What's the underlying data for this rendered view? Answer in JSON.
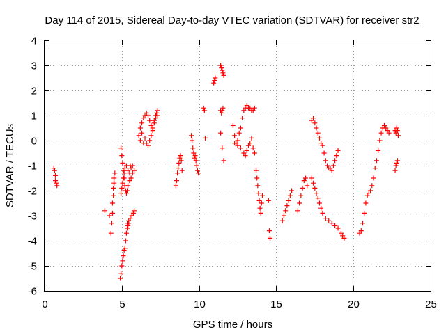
{
  "chart_data": {
    "type": "scatter",
    "title": "Day 114 of 2015, Sidereal Day-to-day VTEC variation (SDTVAR) for receiver str2",
    "xlabel": "GPS time / hours",
    "ylabel": "SDTVAR / TECUs",
    "xlim": [
      0,
      25
    ],
    "ylim": [
      -6,
      4
    ],
    "xticks": [
      "0",
      "5",
      "10",
      "15",
      "20",
      "25"
    ],
    "yticks": [
      "-6",
      "-5",
      "-4",
      "-3",
      "-2",
      "-1",
      "0",
      "1",
      "2",
      "3",
      "4"
    ],
    "grid": true,
    "marker": "+",
    "series_color": "#ff0000",
    "series": [
      {
        "name": "SDTVAR",
        "x": [
          0.6,
          0.65,
          0.7,
          0.7,
          0.75,
          0.8,
          3.9,
          4.2,
          4.3,
          4.35,
          4.4,
          4.4,
          4.45,
          4.45,
          4.5,
          4.5,
          4.55,
          4.9,
          4.95,
          5.0,
          5.05,
          5.1,
          5.15,
          5.2,
          5.25,
          5.3,
          5.35,
          5.4,
          5.45,
          4.95,
          5.0,
          5.05,
          5.1,
          5.15,
          5.2,
          5.3,
          5.4,
          5.5,
          5.55,
          5.6,
          5.7,
          5.8,
          4.95,
          5.0,
          5.05,
          5.1,
          5.15,
          5.2,
          5.25,
          5.3,
          5.35,
          5.4,
          5.5,
          5.6,
          5.7,
          5.35,
          5.45,
          5.55,
          5.65,
          5.75,
          5.8,
          6.1,
          6.2,
          6.3,
          6.4,
          6.5,
          6.6,
          6.7,
          6.8,
          6.9,
          7.0,
          7.1,
          7.2,
          7.3,
          7.3,
          6.2,
          6.3,
          6.4,
          6.5,
          6.6,
          6.7,
          6.8,
          6.9,
          7.0,
          7.1,
          7.2,
          7.25,
          8.5,
          8.55,
          8.6,
          8.65,
          8.7,
          8.75,
          8.8,
          8.85,
          8.9,
          9.5,
          9.55,
          9.6,
          9.65,
          9.7,
          9.75,
          9.8,
          9.85,
          9.9,
          9.95,
          10.3,
          10.35,
          10.4,
          10.95,
          11.0,
          11.05,
          11.4,
          11.45,
          11.5,
          11.55,
          11.6,
          11.4,
          11.45,
          11.5,
          11.55,
          11.4,
          11.5,
          11.6,
          12.2,
          12.3,
          12.4,
          12.5,
          12.6,
          12.7,
          12.8,
          12.9,
          13.0,
          12.3,
          12.5,
          12.7,
          12.9,
          13.0,
          13.1,
          13.2,
          13.3,
          13.4,
          13.5,
          13.6,
          13.1,
          13.2,
          13.3,
          13.4,
          13.5,
          13.6,
          13.7,
          13.75,
          13.8,
          13.85,
          13.9,
          13.95,
          14.0,
          14.05,
          14.1,
          14.5,
          14.55,
          14.6,
          15.4,
          15.5,
          15.6,
          15.7,
          15.8,
          15.9,
          16.0,
          16.4,
          16.5,
          16.6,
          16.7,
          16.8,
          16.9,
          17.0,
          17.3,
          17.4,
          17.5,
          17.6,
          17.7,
          17.8,
          17.9,
          18.0,
          18.1,
          18.2,
          18.3,
          18.4,
          18.5,
          18.6,
          18.7,
          18.8,
          18.9,
          19.0,
          17.3,
          17.4,
          17.5,
          17.6,
          17.7,
          17.8,
          17.9,
          18.0,
          18.2,
          18.4,
          18.6,
          18.8,
          19.0,
          19.2,
          19.3,
          19.4,
          20.4,
          20.5,
          20.6,
          20.7,
          20.8,
          20.9,
          21.0,
          21.1,
          21.2,
          21.3,
          21.4,
          21.5,
          21.6,
          21.7,
          21.8,
          21.9,
          22.0,
          22.1,
          22.2,
          22.3,
          22.7,
          22.75,
          22.8,
          22.85,
          22.9,
          22.7,
          22.75,
          22.8,
          22.85
        ],
        "y": [
          -1.1,
          -1.2,
          -1.4,
          -1.6,
          -1.7,
          -1.8,
          -2.8,
          -3.0,
          -3.7,
          -3.3,
          -2.9,
          -2.5,
          -2.2,
          -1.9,
          -1.7,
          -1.5,
          -1.3,
          -5.5,
          -5.3,
          -5.0,
          -4.8,
          -4.6,
          -4.4,
          -4.3,
          -4.0,
          -3.7,
          -3.5,
          -3.4,
          -3.3,
          -2.1,
          -1.9,
          -1.7,
          -1.5,
          -1.3,
          -1.1,
          -1.0,
          -1.2,
          -1.3,
          -1.0,
          -1.1,
          -1.0,
          -1.2,
          -0.3,
          -0.6,
          -0.9,
          -1.2,
          -1.5,
          -1.8,
          -2.0,
          -2.1,
          -2.0,
          -1.8,
          -1.6,
          -1.5,
          -1.3,
          -3.3,
          -3.2,
          -3.1,
          -3.0,
          -2.9,
          -2.8,
          0.2,
          0.5,
          0.7,
          0.9,
          1.0,
          1.1,
          1.0,
          0.8,
          0.6,
          0.4,
          0.8,
          1.0,
          1.2,
          1.0,
          0.0,
          0.3,
          -0.1,
          0.1,
          -0.1,
          -0.2,
          0.0,
          0.2,
          0.5,
          0.7,
          0.9,
          1.1,
          -1.8,
          -1.6,
          -1.3,
          -1.1,
          -0.9,
          -0.7,
          -0.6,
          -0.8,
          -1.2,
          0.2,
          0.0,
          -0.3,
          -0.5,
          -0.7,
          -0.6,
          -0.8,
          -1.0,
          -1.2,
          -1.3,
          1.3,
          1.2,
          0.1,
          2.3,
          2.4,
          2.5,
          3.0,
          2.9,
          2.8,
          2.7,
          2.6,
          1.2,
          1.1,
          1.2,
          1.3,
          0.3,
          -0.3,
          -0.8,
          0.6,
          0.2,
          -0.1,
          0.0,
          0.3,
          0.5,
          0.9,
          1.2,
          1.3,
          -0.1,
          -0.2,
          -0.3,
          -0.5,
          -0.6,
          -0.4,
          -0.2,
          -0.1,
          0.1,
          -0.3,
          -0.5,
          1.4,
          1.3,
          1.3,
          1.2,
          1.2,
          1.3,
          -1.2,
          -1.5,
          -1.8,
          -2.1,
          -2.4,
          -2.7,
          -2.9,
          -2.5,
          -2.2,
          -2.4,
          -3.6,
          -3.9,
          -3.2,
          -3.0,
          -2.8,
          -2.6,
          -2.4,
          -2.2,
          -2.0,
          -2.8,
          -2.5,
          -2.2,
          -1.9,
          -1.6,
          -1.5,
          -1.8,
          0.8,
          0.9,
          0.7,
          0.5,
          0.3,
          0.1,
          -0.1,
          -0.2,
          -0.5,
          -0.8,
          -1.0,
          -1.1,
          -1.1,
          -1.2,
          -1.0,
          -0.8,
          -0.6,
          -0.4,
          -1.5,
          -1.7,
          -1.9,
          -2.1,
          -2.3,
          -2.5,
          -2.7,
          -2.9,
          -3.1,
          -3.2,
          -3.3,
          -3.4,
          -3.5,
          -3.7,
          -3.8,
          -3.9,
          -3.7,
          -3.6,
          -3.3,
          -2.9,
          -2.5,
          -2.2,
          -2.1,
          -2.0,
          -1.8,
          -1.5,
          -1.1,
          -0.8,
          -0.4,
          0.0,
          0.3,
          0.5,
          0.6,
          0.5,
          0.4,
          0.3,
          0.4,
          0.3,
          0.5,
          0.4,
          0.2,
          -1.2,
          -1.0,
          -0.9,
          -0.8
        ]
      }
    ]
  }
}
